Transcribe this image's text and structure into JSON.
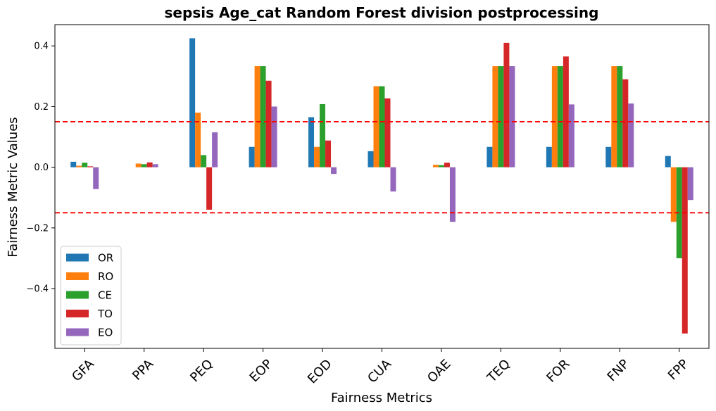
{
  "chart_data": {
    "type": "bar",
    "title": "sepsis Age_cat Random Forest division postprocessing",
    "xlabel": "Fairness Metrics",
    "ylabel": "Fairness Metric Values",
    "categories": [
      "GFA",
      "PPA",
      "PEQ",
      "EOP",
      "EOD",
      "CUA",
      "OAE",
      "TEQ",
      "FOR",
      "FNP",
      "FPP"
    ],
    "series": [
      {
        "name": "OR",
        "color": "#1f77b4",
        "values": [
          0.018,
          0.0,
          0.425,
          0.067,
          0.165,
          0.053,
          0.0,
          0.067,
          0.067,
          0.067,
          0.037
        ]
      },
      {
        "name": "RO",
        "color": "#ff7f0e",
        "values": [
          0.005,
          0.012,
          0.18,
          0.333,
          0.067,
          0.267,
          0.008,
          0.333,
          0.333,
          0.333,
          -0.18
        ]
      },
      {
        "name": "CE",
        "color": "#2ca02c",
        "values": [
          0.015,
          0.01,
          0.04,
          0.333,
          0.208,
          0.267,
          0.007,
          0.333,
          0.333,
          0.333,
          -0.3
        ]
      },
      {
        "name": "TO",
        "color": "#d62728",
        "values": [
          0.003,
          0.016,
          -0.14,
          0.285,
          0.088,
          0.227,
          0.015,
          0.41,
          0.365,
          0.29,
          -0.548
        ]
      },
      {
        "name": "EO",
        "color": "#9467bd",
        "values": [
          -0.072,
          0.01,
          0.115,
          0.2,
          -0.022,
          -0.08,
          -0.18,
          0.333,
          0.207,
          0.21,
          -0.108
        ]
      }
    ],
    "ylim": [
      -0.597,
      0.47
    ],
    "yticks": [
      -0.4,
      -0.2,
      0.0,
      0.2,
      0.4
    ],
    "ytick_labels": [
      "−0.4",
      "−0.2",
      "0.0",
      "0.2",
      "0.4"
    ],
    "reference_lines": [
      0.15,
      -0.15
    ],
    "reference_line_color": "#ff0000",
    "legend_position": "lower-left",
    "grid": false
  }
}
